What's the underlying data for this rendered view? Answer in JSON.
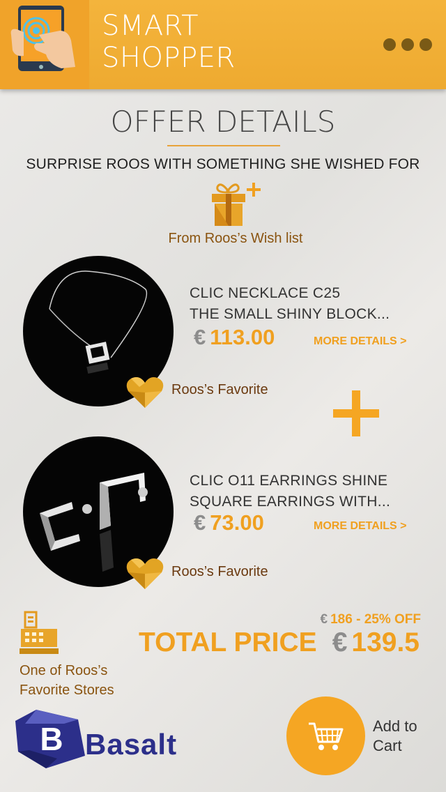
{
  "app": {
    "title_line1": "SMART",
    "title_line2": "SHOPPER",
    "logo_icon": "tablet-touch-icon",
    "menu_icon": "more-dots-icon"
  },
  "page": {
    "title": "OFFER DETAILS",
    "subtitle": "SURPRISE ROOS WITH SOMETHING SHE WISHED FOR",
    "wishlist_label": "From Roos’s Wish list",
    "wishlist_icon": "gift-plus-icon"
  },
  "products": [
    {
      "name_line1": "CLIC NECKLACE C25",
      "name_line2": "THE SMALL SHINY BLOCK...",
      "currency": "€",
      "price": "113.00",
      "more_label": "MORE DETAILS >",
      "favorite_label": "Roos’s Favorite",
      "image": "necklace-image"
    },
    {
      "name_line1": "CLIC O11 EARRINGS SHINE",
      "name_line2": "SQUARE EARRINGS WITH...",
      "currency": "€",
      "price": "73.00",
      "more_label": "MORE DETAILS >",
      "favorite_label": "Roos’s Favorite",
      "image": "earrings-image"
    }
  ],
  "summary": {
    "store_label_line1": "One of Roos’s",
    "store_label_line2": "Favorite Stores",
    "store_icon": "store-register-icon",
    "orig_currency": "€",
    "original_price": "186 - 25% OFF",
    "total_label": "TOTAL PRICE",
    "total_currency": "€",
    "total_value": "139.5"
  },
  "store": {
    "logo_letter": "B",
    "name": "Basalt"
  },
  "cart": {
    "label_line1": "Add to",
    "label_line2": "Cart",
    "icon": "shopping-cart-icon"
  },
  "colors": {
    "accent": "#f5a623",
    "header": "#f4b43c",
    "brand_blue": "#2c2f8a"
  }
}
